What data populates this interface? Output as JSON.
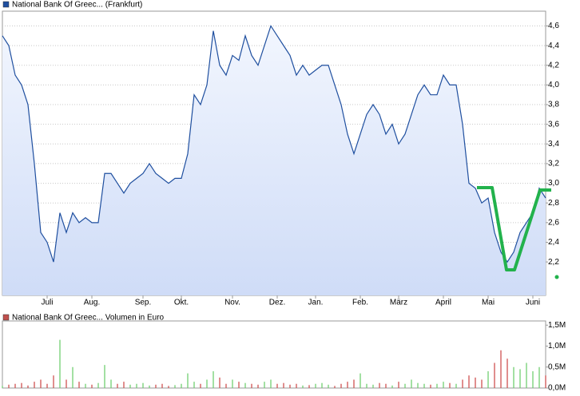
{
  "chart_data": [
    {
      "type": "line",
      "series": [
        {
          "name": "National Bank Of Greec... (Frankfurt)",
          "color": "#1f4f9f",
          "values": [
            4.5,
            4.4,
            4.1,
            4.0,
            3.8,
            3.2,
            2.5,
            2.4,
            2.2,
            2.7,
            2.5,
            2.7,
            2.6,
            2.65,
            2.6,
            2.6,
            3.1,
            3.1,
            3.0,
            2.9,
            3.0,
            3.05,
            3.1,
            3.2,
            3.1,
            3.05,
            3.0,
            3.05,
            3.05,
            3.3,
            3.9,
            3.8,
            4.0,
            4.55,
            4.2,
            4.1,
            4.3,
            4.25,
            4.5,
            4.3,
            4.2,
            4.4,
            4.6,
            4.5,
            4.4,
            4.3,
            4.1,
            4.2,
            4.1,
            4.15,
            4.2,
            4.2,
            4.0,
            3.8,
            3.5,
            3.3,
            3.5,
            3.7,
            3.8,
            3.7,
            3.5,
            3.6,
            3.4,
            3.5,
            3.7,
            3.9,
            4.0,
            3.9,
            3.9,
            4.1,
            4.0,
            4.0,
            3.6,
            3.0,
            2.95,
            2.8,
            2.85,
            2.5,
            2.3,
            2.2,
            2.3,
            2.5,
            2.6,
            2.7,
            2.95,
            2.85
          ]
        }
      ],
      "categories": [
        null,
        null,
        null,
        null,
        null,
        null,
        null,
        "Juli",
        null,
        null,
        null,
        null,
        null,
        null,
        "Aug.",
        null,
        null,
        null,
        null,
        null,
        null,
        null,
        "Sep.",
        null,
        null,
        null,
        null,
        null,
        "Okt.",
        null,
        null,
        null,
        null,
        null,
        null,
        null,
        "Nov.",
        null,
        null,
        null,
        null,
        null,
        null,
        "Dez.",
        null,
        null,
        null,
        null,
        null,
        "Jan.",
        null,
        null,
        null,
        null,
        null,
        null,
        "Feb.",
        null,
        null,
        null,
        null,
        null,
        "März",
        null,
        null,
        null,
        null,
        null,
        null,
        "April",
        null,
        null,
        null,
        null,
        null,
        null,
        "Mai",
        null,
        null,
        null,
        null,
        null,
        null,
        "Juni",
        null,
        null
      ],
      "ylim": [
        1.86,
        4.75
      ],
      "yticks": [
        {
          "value": 2.2,
          "label": "2,2"
        },
        {
          "value": 2.4,
          "label": "2,4"
        },
        {
          "value": 2.6,
          "label": "2,6"
        },
        {
          "value": 2.8,
          "label": "2,8"
        },
        {
          "value": 3.0,
          "label": "3,0"
        },
        {
          "value": 3.2,
          "label": "3,2"
        },
        {
          "value": 3.4,
          "label": "3,4"
        },
        {
          "value": 3.6,
          "label": "3,6"
        },
        {
          "value": 3.8,
          "label": "3,8"
        },
        {
          "value": 4.0,
          "label": "4,0"
        },
        {
          "value": 4.2,
          "label": "4,2"
        },
        {
          "value": 4.4,
          "label": "4,4"
        },
        {
          "value": 4.6,
          "label": "4,6"
        }
      ],
      "grid": true,
      "fill": "#dce7fb"
    },
    {
      "type": "bar",
      "series": [
        {
          "name": "National Bank Of Greec... Volumen in Euro",
          "color": "#c0504d",
          "values": [
            0.05,
            0.08,
            0.1,
            0.12,
            0.06,
            0.15,
            0.2,
            0.1,
            0.3,
            1.15,
            0.2,
            0.5,
            0.15,
            0.1,
            0.08,
            0.12,
            0.55,
            0.2,
            0.1,
            0.15,
            0.08,
            0.1,
            0.12,
            0.06,
            0.08,
            0.1,
            0.05,
            0.07,
            0.1,
            0.35,
            0.15,
            0.1,
            0.2,
            0.4,
            0.25,
            0.1,
            0.2,
            0.15,
            0.12,
            0.1,
            0.08,
            0.15,
            0.2,
            0.1,
            0.12,
            0.08,
            0.1,
            0.06,
            0.07,
            0.1,
            0.12,
            0.08,
            0.05,
            0.1,
            0.15,
            0.2,
            0.35,
            0.1,
            0.08,
            0.12,
            0.1,
            0.06,
            0.15,
            0.1,
            0.2,
            0.12,
            0.1,
            0.08,
            0.1,
            0.15,
            0.12,
            0.1,
            0.2,
            0.3,
            0.25,
            0.2,
            0.4,
            0.6,
            0.9,
            0.7,
            0.5,
            0.45,
            0.6,
            0.4,
            0.5,
            0.3
          ]
        }
      ],
      "ylim": [
        0,
        1.6
      ],
      "yticks": [
        {
          "value": 0,
          "label": "0,0M"
        },
        {
          "value": 0.5,
          "label": "0,5M"
        },
        {
          "value": 1.0,
          "label": "1,0M"
        },
        {
          "value": 1.5,
          "label": "1,5M"
        }
      ],
      "up_color": "#66cc66",
      "down_color": "#cc4444"
    }
  ]
}
